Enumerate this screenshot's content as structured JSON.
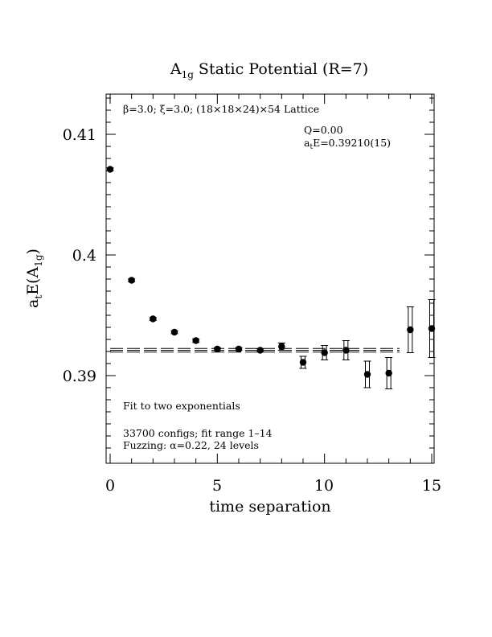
{
  "chart_data": {
    "type": "scatter",
    "title_main": "A",
    "title_sub": "1g",
    "title_rest": " Static Potential (R=7)",
    "xlabel": "time separation",
    "ylabel_main": "a",
    "ylabel_t": "t",
    "ylabel_mid": "E(A",
    "ylabel_sub": "1g",
    "ylabel_end": ")",
    "xlim": [
      0,
      15
    ],
    "ylim": [
      0.3833,
      0.4133
    ],
    "x_ticks": [
      "0",
      "5",
      "10",
      "15"
    ],
    "y_ticks": [
      "0.39",
      "0.4",
      "0.41"
    ],
    "grid": false,
    "annotations": {
      "lattice": "β=3.0; ξ=3.0; (18×18×24)×54 Lattice",
      "q": "Q=0.00",
      "energy_main": "a",
      "energy_sub": "t",
      "energy_rest": "E=0.39210(15)",
      "fit": "Fit to two exponentials",
      "configs": "33700 configs; fit range 1–14",
      "fuzzing": "Fuzzing: α=0.22, 24 levels"
    },
    "points": [
      {
        "x": 0,
        "y": 0.4071,
        "err": 0.00012
      },
      {
        "x": 1,
        "y": 0.3979,
        "err": 0.00012
      },
      {
        "x": 2,
        "y": 0.3947,
        "err": 0.00012
      },
      {
        "x": 3,
        "y": 0.3936,
        "err": 0.00012
      },
      {
        "x": 4,
        "y": 0.3929,
        "err": 0.00015
      },
      {
        "x": 5,
        "y": 0.3922,
        "err": 0.00012
      },
      {
        "x": 6,
        "y": 0.3922,
        "err": 0.00012
      },
      {
        "x": 7,
        "y": 0.3921,
        "err": 0.00012
      },
      {
        "x": 8,
        "y": 0.3924,
        "err": 0.0003
      },
      {
        "x": 9,
        "y": 0.3911,
        "err": 0.0005
      },
      {
        "x": 10,
        "y": 0.3919,
        "err": 0.0006
      },
      {
        "x": 11,
        "y": 0.3921,
        "err": 0.0008
      },
      {
        "x": 12,
        "y": 0.3901,
        "err": 0.0011
      },
      {
        "x": 13,
        "y": 0.3902,
        "err": 0.0013
      },
      {
        "x": 14,
        "y": 0.3938,
        "err": 0.0019
      },
      {
        "x": 15,
        "y": 0.3939,
        "err": 0.0024
      }
    ],
    "fit": {
      "x_range": [
        0,
        13.5
      ],
      "value": 0.3921,
      "err": 0.00015
    }
  }
}
